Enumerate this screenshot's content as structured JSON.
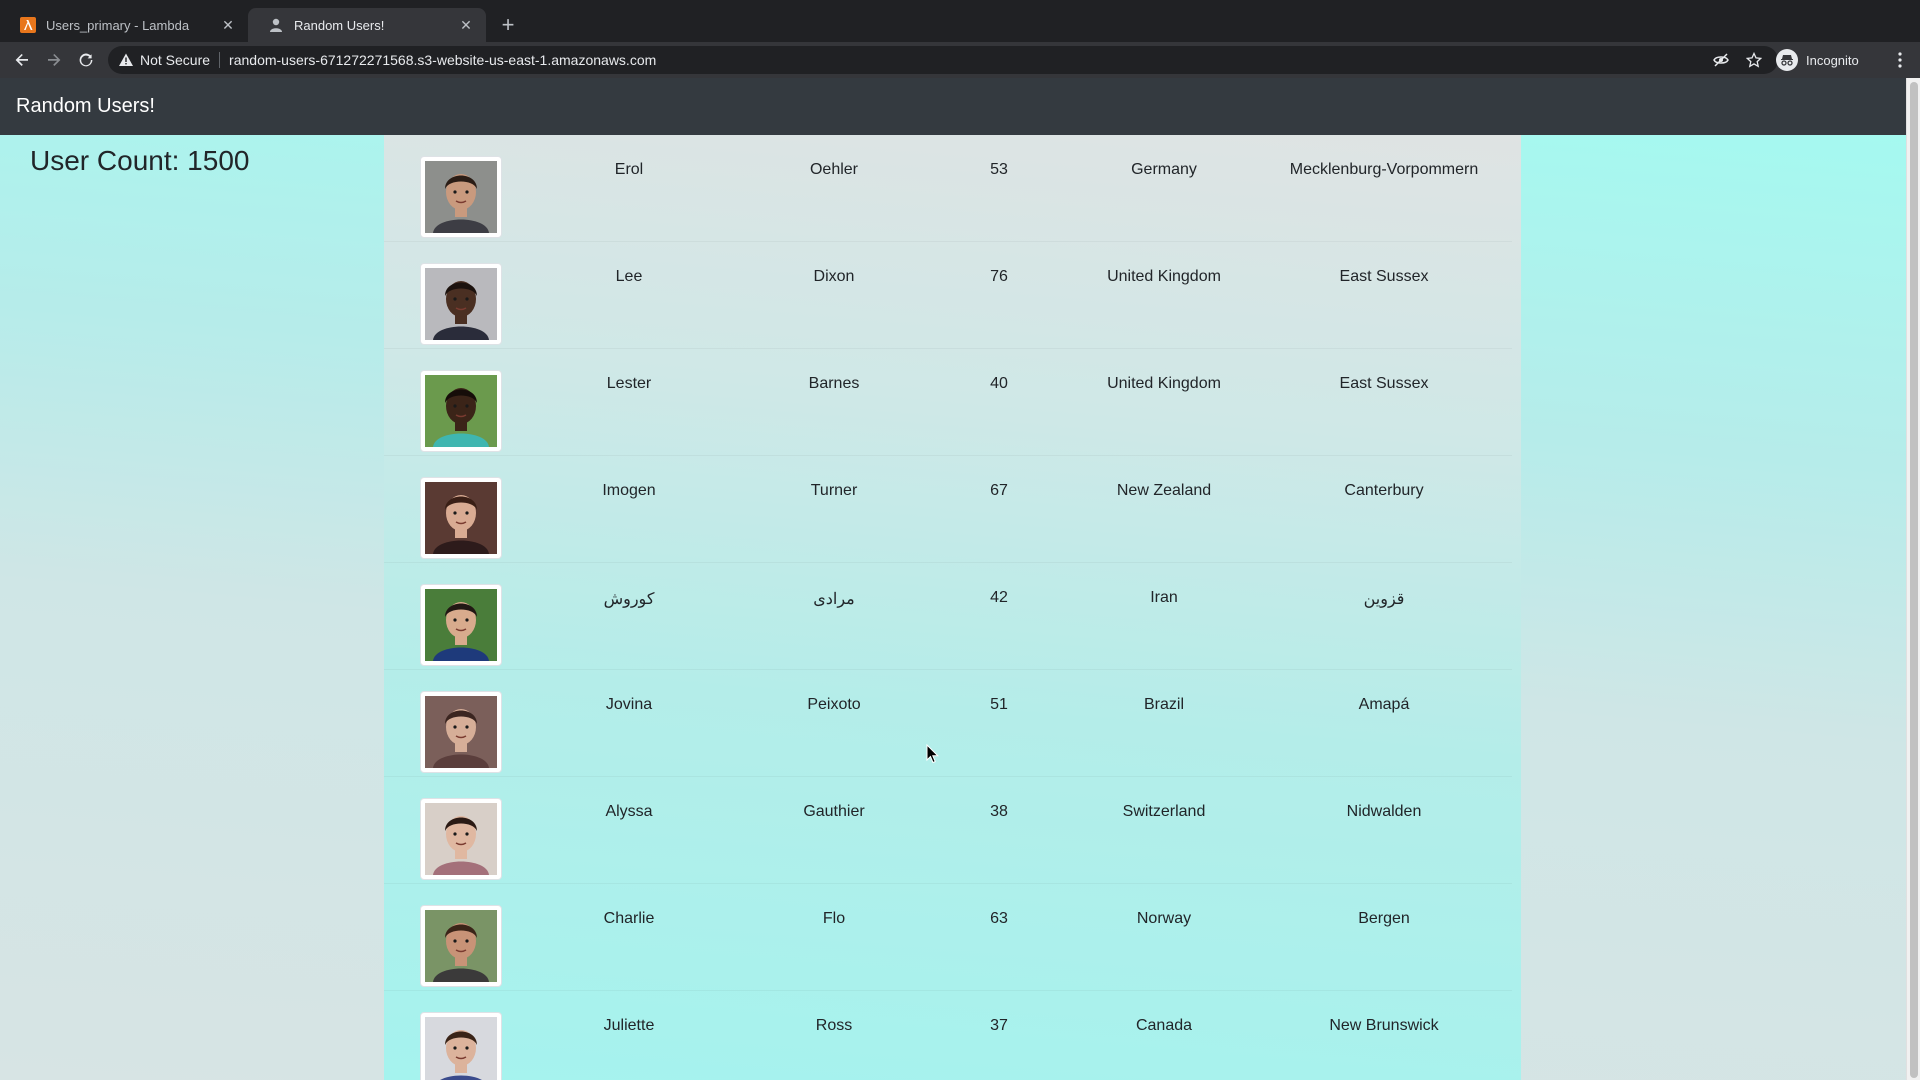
{
  "browser": {
    "tabs": [
      {
        "title": "Users_primary - Lambda",
        "icon": "aws-lambda-icon",
        "active": false
      },
      {
        "title": "Random Users!",
        "icon": "person-icon",
        "active": true
      }
    ],
    "security_label": "Not Secure",
    "url": "random-users-671272271568.s3-website-us-east-1.amazonaws.com",
    "profile_label": "Incognito"
  },
  "page": {
    "brand": "Random Users!",
    "user_count_text": "User Count: 1500",
    "users": [
      {
        "first": "Erol",
        "last": "Oehler",
        "age": "53",
        "country": "Germany",
        "state": "Mecklenburg-Vorpommern",
        "skin": "#c99a7e",
        "hair": "#2b1d16",
        "bg": "#8d8f8c",
        "shirt": "#3d3d44"
      },
      {
        "first": "Lee",
        "last": "Dixon",
        "age": "76",
        "country": "United Kingdom",
        "state": "East Sussex",
        "skin": "#4a2f22",
        "hair": "#1c120e",
        "bg": "#b9b9bd",
        "shirt": "#2a2c3a"
      },
      {
        "first": "Lester",
        "last": "Barnes",
        "age": "40",
        "country": "United Kingdom",
        "state": "East Sussex",
        "skin": "#3b2418",
        "hair": "#160d09",
        "bg": "#6b9a4d",
        "shirt": "#3fb6b0"
      },
      {
        "first": "Imogen",
        "last": "Turner",
        "age": "67",
        "country": "New Zealand",
        "state": "Canterbury",
        "skin": "#d9ab93",
        "hair": "#3a1f16",
        "bg": "#5a3a33",
        "shirt": "#2d1b1b"
      },
      {
        "first": "کوروش",
        "last": "مرادی",
        "age": "42",
        "country": "Iran",
        "state": "قزوین",
        "skin": "#d8ab8d",
        "hair": "#221814",
        "bg": "#4a7d3a",
        "shirt": "#1e3a7b"
      },
      {
        "first": "Jovina",
        "last": "Peixoto",
        "age": "51",
        "country": "Brazil",
        "state": "Amapá",
        "skin": "#d6ae98",
        "hair": "#3b2520",
        "bg": "#7b5f5a",
        "shirt": "#5b3e3c"
      },
      {
        "first": "Alyssa",
        "last": "Gauthier",
        "age": "38",
        "country": "Switzerland",
        "state": "Nidwalden",
        "skin": "#e0b8a1",
        "hair": "#2b1a14",
        "bg": "#d8cfc8",
        "shirt": "#a4707a"
      },
      {
        "first": "Charlie",
        "last": "Flo",
        "age": "63",
        "country": "Norway",
        "state": "Bergen",
        "skin": "#c89377",
        "hair": "#3b2519",
        "bg": "#7a9466",
        "shirt": "#3b3a3a"
      },
      {
        "first": "Juliette",
        "last": "Ross",
        "age": "37",
        "country": "Canada",
        "state": "New Brunswick",
        "skin": "#dcb39c",
        "hair": "#3a2418",
        "bg": "#d7d9de",
        "shirt": "#3a4b8c"
      }
    ]
  }
}
